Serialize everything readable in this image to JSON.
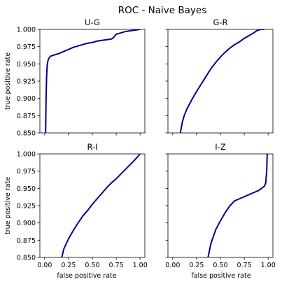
{
  "title": "ROC - Naive Bayes",
  "xlabel": "false positive rate",
  "ylabel": "true positive rate",
  "line_color": "#00008b",
  "chart_data": [
    {
      "type": "line",
      "title": "U-G",
      "xlim": [
        -0.05,
        1.05
      ],
      "ylim": [
        0.85,
        1.0
      ],
      "xticks": [
        "0.00",
        "0.25",
        "0.50",
        "0.75",
        "1.00"
      ],
      "yticks": [
        "0.850",
        "0.875",
        "0.900",
        "0.925",
        "0.950",
        "0.975",
        "1.000"
      ],
      "show_xticklabels": false,
      "show_yticklabels": true,
      "x": [
        0.01,
        0.015,
        0.02,
        0.025,
        0.03,
        0.04,
        0.06,
        0.1,
        0.15,
        0.2,
        0.25,
        0.3,
        0.35,
        0.4,
        0.45,
        0.5,
        0.55,
        0.6,
        0.65,
        0.7,
        0.72,
        0.75,
        0.8,
        0.85,
        0.9,
        0.95,
        1.0
      ],
      "y": [
        0.85,
        0.9,
        0.93,
        0.945,
        0.952,
        0.957,
        0.961,
        0.963,
        0.965,
        0.968,
        0.971,
        0.974,
        0.976,
        0.978,
        0.98,
        0.981,
        0.983,
        0.984,
        0.985,
        0.986,
        0.988,
        0.993,
        0.995,
        0.997,
        0.998,
        0.999,
        1.0
      ]
    },
    {
      "type": "line",
      "title": "G-R",
      "xlim": [
        -0.05,
        1.05
      ],
      "ylim": [
        0.85,
        1.0
      ],
      "xticks": [
        "0.00",
        "0.25",
        "0.50",
        "0.75",
        "1.00"
      ],
      "yticks": [
        "0.850",
        "0.875",
        "0.900",
        "0.925",
        "0.950",
        "0.975",
        "1.000"
      ],
      "show_xticklabels": false,
      "show_yticklabels": false,
      "x": [
        0.08,
        0.1,
        0.12,
        0.15,
        0.2,
        0.25,
        0.3,
        0.35,
        0.4,
        0.45,
        0.5,
        0.55,
        0.6,
        0.65,
        0.7,
        0.75,
        0.8,
        0.85,
        0.88,
        0.92,
        0.96
      ],
      "y": [
        0.85,
        0.865,
        0.875,
        0.885,
        0.898,
        0.91,
        0.921,
        0.932,
        0.943,
        0.952,
        0.96,
        0.967,
        0.973,
        0.978,
        0.982,
        0.987,
        0.991,
        0.995,
        0.998,
        1.0,
        1.0
      ]
    },
    {
      "type": "line",
      "title": "R-I",
      "xlim": [
        -0.05,
        1.05
      ],
      "ylim": [
        0.85,
        1.0
      ],
      "xticks": [
        "0.00",
        "0.25",
        "0.50",
        "0.75",
        "1.00"
      ],
      "yticks": [
        "0.850",
        "0.875",
        "0.900",
        "0.925",
        "0.950",
        "0.975",
        "1.000"
      ],
      "show_xticklabels": true,
      "show_yticklabels": true,
      "x": [
        0.18,
        0.2,
        0.25,
        0.3,
        0.35,
        0.4,
        0.45,
        0.5,
        0.55,
        0.6,
        0.65,
        0.7,
        0.75,
        0.8,
        0.85,
        0.9,
        0.95,
        1.0
      ],
      "y": [
        0.85,
        0.862,
        0.877,
        0.889,
        0.9,
        0.91,
        0.918,
        0.927,
        0.935,
        0.943,
        0.951,
        0.958,
        0.964,
        0.971,
        0.978,
        0.985,
        0.992,
        1.0
      ]
    },
    {
      "type": "line",
      "title": "I-Z",
      "xlim": [
        -0.05,
        1.05
      ],
      "ylim": [
        0.85,
        1.0
      ],
      "xticks": [
        "0.00",
        "0.25",
        "0.50",
        "0.75",
        "1.00"
      ],
      "yticks": [
        "0.850",
        "0.875",
        "0.900",
        "0.925",
        "0.950",
        "0.975",
        "1.000"
      ],
      "show_xticklabels": true,
      "show_yticklabels": false,
      "x": [
        0.37,
        0.4,
        0.45,
        0.5,
        0.55,
        0.6,
        0.65,
        0.7,
        0.75,
        0.8,
        0.85,
        0.9,
        0.93,
        0.96,
        0.975,
        0.985,
        0.99,
        1.0
      ],
      "y": [
        0.85,
        0.87,
        0.89,
        0.903,
        0.915,
        0.925,
        0.932,
        0.935,
        0.938,
        0.941,
        0.944,
        0.947,
        0.95,
        0.953,
        0.958,
        0.975,
        1.0,
        1.0
      ]
    }
  ]
}
